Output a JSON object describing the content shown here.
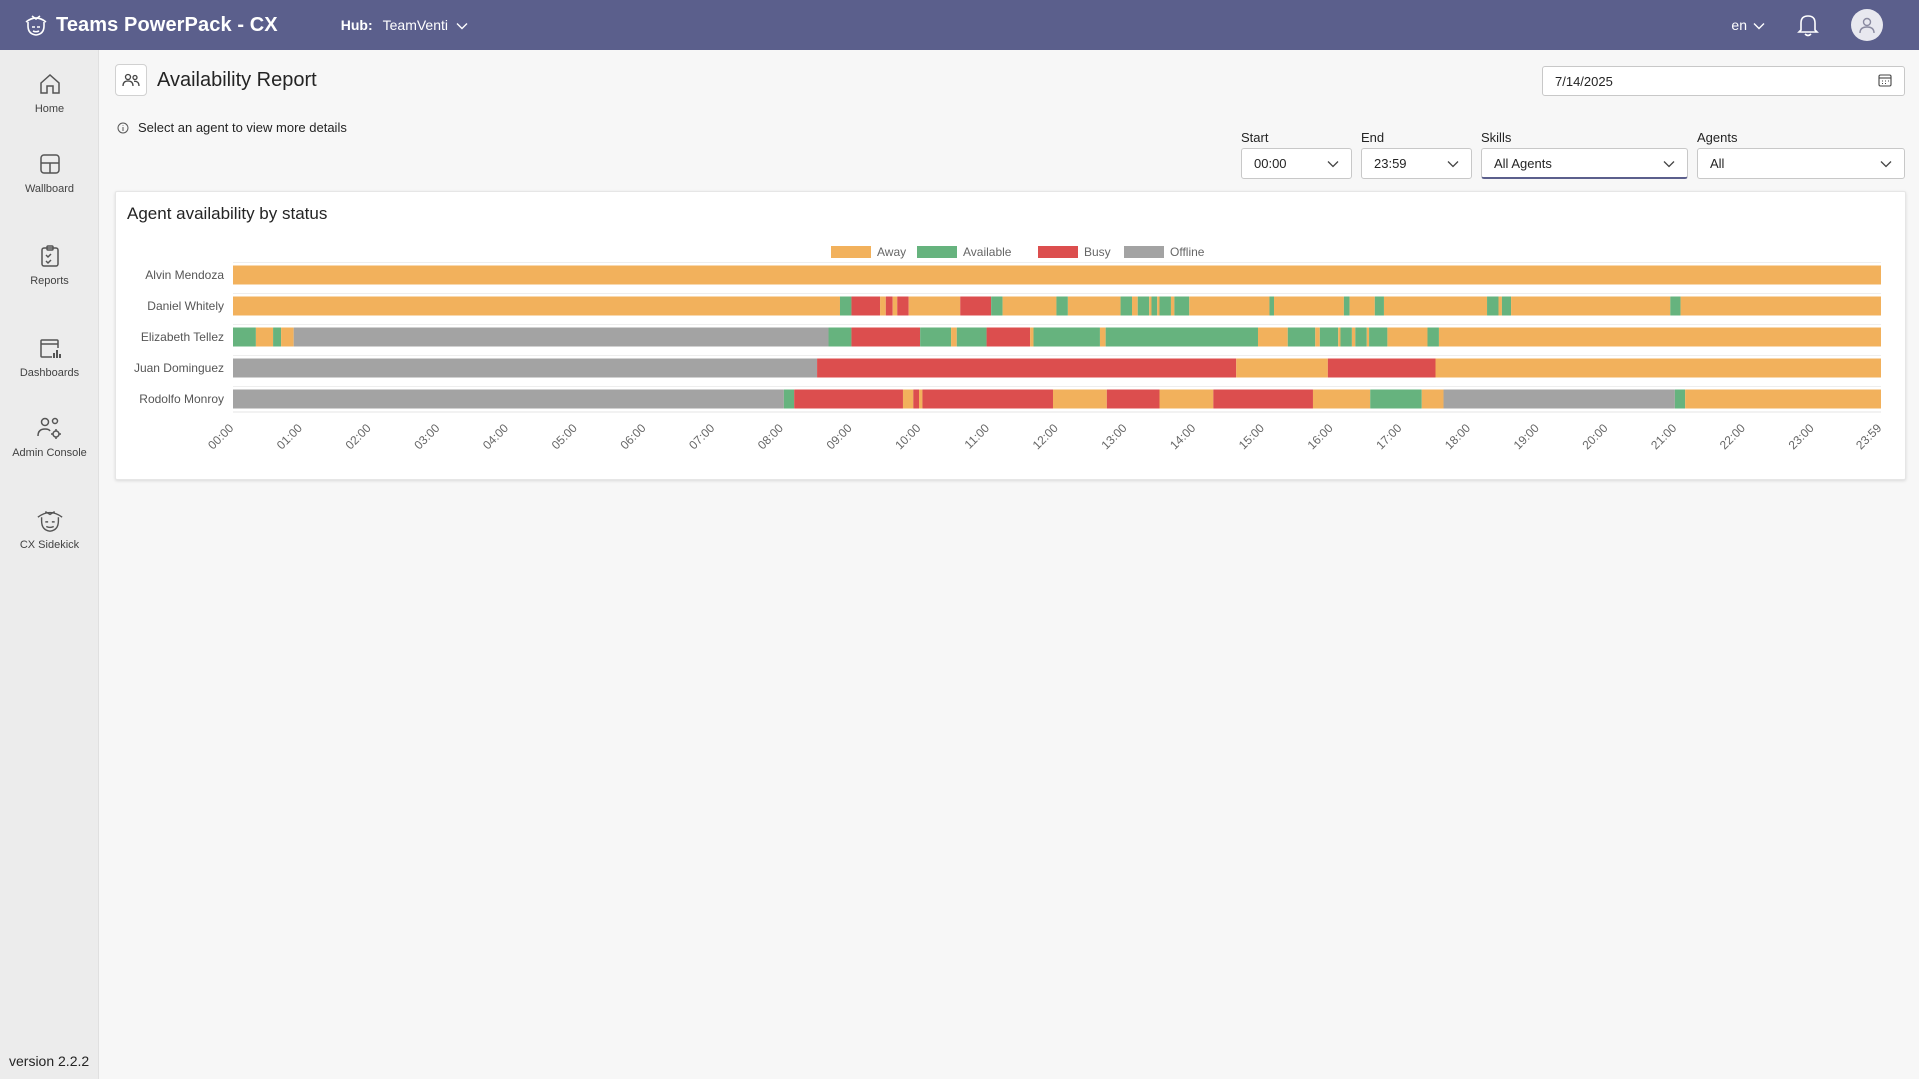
{
  "app": {
    "title": "Teams PowerPack - CX"
  },
  "hub": {
    "label": "Hub:",
    "value": "TeamVenti"
  },
  "language": "en",
  "sidebar": {
    "items": [
      {
        "label": "Home",
        "icon": "home-icon"
      },
      {
        "label": "Wallboard",
        "icon": "wallboard-icon"
      },
      {
        "label": "Reports",
        "icon": "reports-icon"
      },
      {
        "label": "Dashboards",
        "icon": "dashboards-icon"
      },
      {
        "label": "Admin Console",
        "icon": "admin-console-icon"
      },
      {
        "label": "CX Sidekick",
        "icon": "cx-sidekick-icon"
      }
    ],
    "version": "version 2.2.2"
  },
  "page": {
    "title": "Availability Report",
    "date": "7/14/2025",
    "info": "Select an agent to view more details"
  },
  "filters": {
    "start": {
      "label": "Start",
      "value": "00:00"
    },
    "end": {
      "label": "End",
      "value": "23:59"
    },
    "skills": {
      "label": "Skills",
      "value": "All Agents"
    },
    "agents": {
      "label": "Agents",
      "value": "All"
    }
  },
  "colors": {
    "topbar": "#5b5f8c",
    "Away": "#f2b15c",
    "Available": "#66b37e",
    "Busy": "#dc4e4e",
    "Offline": "#a3a3a3"
  },
  "chart_data": {
    "type": "timeline",
    "title": "Agent availability by status",
    "legend": [
      "Away",
      "Available",
      "Busy",
      "Offline"
    ],
    "legend_position": "top-center",
    "x_ticks": [
      "00:00",
      "01:00",
      "02:00",
      "03:00",
      "04:00",
      "05:00",
      "06:00",
      "07:00",
      "08:00",
      "09:00",
      "10:00",
      "11:00",
      "12:00",
      "13:00",
      "14:00",
      "15:00",
      "16:00",
      "17:00",
      "18:00",
      "19:00",
      "20:00",
      "21:00",
      "22:00",
      "23:00",
      "23:59"
    ],
    "x_range": [
      "00:00",
      "23:59"
    ],
    "agents": [
      {
        "name": "Alvin Mendoza",
        "segments": [
          {
            "status": "Away",
            "start": "00:00",
            "end": "23:59"
          }
        ]
      },
      {
        "name": "Daniel Whitely",
        "segments": [
          {
            "status": "Away",
            "start": "00:00",
            "end": "08:50"
          },
          {
            "status": "Available",
            "start": "08:50",
            "end": "09:00"
          },
          {
            "status": "Busy",
            "start": "09:00",
            "end": "09:25"
          },
          {
            "status": "Away",
            "start": "09:25",
            "end": "09:30"
          },
          {
            "status": "Busy",
            "start": "09:30",
            "end": "09:36"
          },
          {
            "status": "Away",
            "start": "09:36",
            "end": "09:40"
          },
          {
            "status": "Busy",
            "start": "09:40",
            "end": "09:50"
          },
          {
            "status": "Away",
            "start": "09:50",
            "end": "10:35"
          },
          {
            "status": "Busy",
            "start": "10:35",
            "end": "11:02"
          },
          {
            "status": "Available",
            "start": "11:02",
            "end": "11:12"
          },
          {
            "status": "Away",
            "start": "11:12",
            "end": "11:59"
          },
          {
            "status": "Available",
            "start": "11:59",
            "end": "12:09"
          },
          {
            "status": "Away",
            "start": "12:09",
            "end": "12:55"
          },
          {
            "status": "Available",
            "start": "12:55",
            "end": "13:05"
          },
          {
            "status": "Away",
            "start": "13:05",
            "end": "13:10"
          },
          {
            "status": "Available",
            "start": "13:10",
            "end": "13:20"
          },
          {
            "status": "Away",
            "start": "13:20",
            "end": "13:22"
          },
          {
            "status": "Available",
            "start": "13:22",
            "end": "13:27"
          },
          {
            "status": "Away",
            "start": "13:27",
            "end": "13:29"
          },
          {
            "status": "Available",
            "start": "13:29",
            "end": "13:39"
          },
          {
            "status": "Away",
            "start": "13:39",
            "end": "13:42"
          },
          {
            "status": "Available",
            "start": "13:42",
            "end": "13:55"
          },
          {
            "status": "Away",
            "start": "13:55",
            "end": "15:05"
          },
          {
            "status": "Available",
            "start": "15:05",
            "end": "15:09"
          },
          {
            "status": "Away",
            "start": "15:09",
            "end": "16:10"
          },
          {
            "status": "Available",
            "start": "16:10",
            "end": "16:15"
          },
          {
            "status": "Away",
            "start": "16:15",
            "end": "16:37"
          },
          {
            "status": "Available",
            "start": "16:37",
            "end": "16:45"
          },
          {
            "status": "Away",
            "start": "16:45",
            "end": "18:15"
          },
          {
            "status": "Available",
            "start": "18:15",
            "end": "18:25"
          },
          {
            "status": "Away",
            "start": "18:25",
            "end": "18:28"
          },
          {
            "status": "Available",
            "start": "18:28",
            "end": "18:36"
          },
          {
            "status": "Away",
            "start": "18:36",
            "end": "20:55"
          },
          {
            "status": "Available",
            "start": "20:55",
            "end": "21:04"
          },
          {
            "status": "Away",
            "start": "21:04",
            "end": "23:59"
          }
        ]
      },
      {
        "name": "Elizabeth Tellez",
        "segments": [
          {
            "status": "Available",
            "start": "00:00",
            "end": "00:20"
          },
          {
            "status": "Away",
            "start": "00:20",
            "end": "00:35"
          },
          {
            "status": "Available",
            "start": "00:35",
            "end": "00:42"
          },
          {
            "status": "Away",
            "start": "00:42",
            "end": "00:53"
          },
          {
            "status": "Offline",
            "start": "00:53",
            "end": "08:40"
          },
          {
            "status": "Available",
            "start": "08:40",
            "end": "09:00"
          },
          {
            "status": "Busy",
            "start": "09:00",
            "end": "10:00"
          },
          {
            "status": "Available",
            "start": "10:00",
            "end": "10:27"
          },
          {
            "status": "Away",
            "start": "10:27",
            "end": "10:32"
          },
          {
            "status": "Available",
            "start": "10:32",
            "end": "10:58"
          },
          {
            "status": "Busy",
            "start": "10:58",
            "end": "11:36"
          },
          {
            "status": "Away",
            "start": "11:36",
            "end": "11:39"
          },
          {
            "status": "Available",
            "start": "11:39",
            "end": "12:37"
          },
          {
            "status": "Away",
            "start": "12:37",
            "end": "12:42"
          },
          {
            "status": "Available",
            "start": "12:42",
            "end": "14:55"
          },
          {
            "status": "Away",
            "start": "14:55",
            "end": "15:21"
          },
          {
            "status": "Available",
            "start": "15:21",
            "end": "15:45"
          },
          {
            "status": "Away",
            "start": "15:45",
            "end": "15:49"
          },
          {
            "status": "Available",
            "start": "15:49",
            "end": "16:05"
          },
          {
            "status": "Away",
            "start": "16:05",
            "end": "16:07"
          },
          {
            "status": "Available",
            "start": "16:07",
            "end": "16:17"
          },
          {
            "status": "Away",
            "start": "16:17",
            "end": "16:20"
          },
          {
            "status": "Available",
            "start": "16:20",
            "end": "16:30"
          },
          {
            "status": "Away",
            "start": "16:30",
            "end": "16:32"
          },
          {
            "status": "Available",
            "start": "16:32",
            "end": "16:48"
          },
          {
            "status": "Away",
            "start": "16:48",
            "end": "17:23"
          },
          {
            "status": "Available",
            "start": "17:23",
            "end": "17:33"
          },
          {
            "status": "Away",
            "start": "17:33",
            "end": "23:59"
          }
        ]
      },
      {
        "name": "Juan Dominguez",
        "segments": [
          {
            "status": "Offline",
            "start": "00:00",
            "end": "08:30"
          },
          {
            "status": "Busy",
            "start": "08:30",
            "end": "14:36"
          },
          {
            "status": "Away",
            "start": "14:36",
            "end": "15:56"
          },
          {
            "status": "Busy",
            "start": "15:56",
            "end": "17:30"
          },
          {
            "status": "Away",
            "start": "17:30",
            "end": "23:59"
          }
        ]
      },
      {
        "name": "Rodolfo Monroy",
        "segments": [
          {
            "status": "Offline",
            "start": "00:00",
            "end": "08:01"
          },
          {
            "status": "Available",
            "start": "08:01",
            "end": "08:10"
          },
          {
            "status": "Busy",
            "start": "08:10",
            "end": "09:45"
          },
          {
            "status": "Away",
            "start": "09:45",
            "end": "09:54"
          },
          {
            "status": "Busy",
            "start": "09:54",
            "end": "09:59"
          },
          {
            "status": "Away",
            "start": "09:59",
            "end": "10:02"
          },
          {
            "status": "Busy",
            "start": "10:02",
            "end": "11:56"
          },
          {
            "status": "Away",
            "start": "11:56",
            "end": "12:43"
          },
          {
            "status": "Busy",
            "start": "12:43",
            "end": "13:29"
          },
          {
            "status": "Away",
            "start": "13:29",
            "end": "14:16"
          },
          {
            "status": "Busy",
            "start": "14:16",
            "end": "15:43"
          },
          {
            "status": "Away",
            "start": "15:43",
            "end": "16:33"
          },
          {
            "status": "Available",
            "start": "16:33",
            "end": "17:18"
          },
          {
            "status": "Away",
            "start": "17:18",
            "end": "17:37"
          },
          {
            "status": "Offline",
            "start": "17:37",
            "end": "20:59"
          },
          {
            "status": "Available",
            "start": "20:59",
            "end": "21:08"
          },
          {
            "status": "Away",
            "start": "21:08",
            "end": "23:59"
          }
        ]
      }
    ]
  }
}
